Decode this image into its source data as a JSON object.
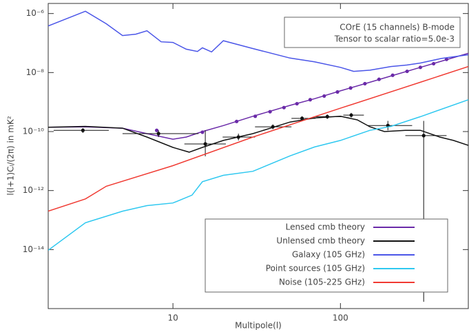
{
  "chart_data": {
    "type": "line",
    "x_label": "Multipole(l)",
    "y_label": "l(l+1)Cₗ/(2π) in mK²",
    "annotations": [
      "COrE (15 channels)  B-mode",
      "Tensor to scalar ratio=5.0e-3"
    ],
    "log_x": true,
    "log_y": true,
    "grid": false,
    "legend": "lower right",
    "xlim": [
      1.8,
      580
    ],
    "xticks": [
      10,
      100
    ],
    "ylim": [
      1e-16,
      2.2e-06
    ],
    "yticks": [
      {
        "value": 1e-06,
        "label": "10⁻⁶"
      },
      {
        "value": 1e-08,
        "label": "10⁻⁸"
      },
      {
        "value": 1e-10,
        "label": "10⁻¹⁰"
      },
      {
        "value": 1e-12,
        "label": "10⁻¹²"
      },
      {
        "value": 1e-14,
        "label": "10⁻¹⁴"
      }
    ],
    "series": [
      {
        "name": "Lensed cmb theory",
        "color": "#6a2aa8",
        "x": [
          1.8,
          3,
          5,
          7,
          10,
          12,
          15,
          20,
          30,
          50,
          70,
          100,
          150,
          200,
          300,
          580
        ],
        "values": [
          1.4e-10,
          1.45e-10,
          1.3e-10,
          8.5e-11,
          5.5e-11,
          6.5e-11,
          1e-10,
          1.6e-10,
          3.3e-10,
          7.7e-10,
          1.3e-09,
          2.4e-09,
          4.7e-09,
          7.6e-09,
          1.5e-08,
          4.5e-08
        ],
        "points": {
          "x": [
            8,
            15,
            24,
            31,
            38,
            46,
            55,
            66,
            80,
            96,
            115,
            140,
            170,
            205,
            250,
            300,
            360,
            430
          ],
          "values": [
            1.1e-10,
            9.5e-11,
            2.2e-10,
            3.3e-10,
            4.7e-10,
            6.5e-10,
            8.8e-10,
            1.2e-09,
            1.6e-09,
            2.2e-09,
            3e-09,
            4.2e-09,
            5.9e-09,
            8.1e-09,
            1.1e-08,
            1.5e-08,
            2e-08,
            2.8e-08
          ]
        }
      },
      {
        "name": "Unlensed cmb theory",
        "color": "#111111",
        "x": [
          1.8,
          3,
          5,
          7,
          10,
          12.5,
          15,
          20,
          30,
          50,
          70,
          100,
          126,
          150,
          183,
          244,
          300,
          392,
          473,
          580
        ],
        "values": [
          1.4e-10,
          1.5e-10,
          1.3e-10,
          6.5e-11,
          2.9e-11,
          2e-11,
          2.9e-11,
          5e-11,
          8.5e-11,
          2.1e-10,
          2.9e-10,
          3.3e-10,
          2.5e-10,
          1.45e-10,
          1e-10,
          1.1e-10,
          1.1e-10,
          6.5e-11,
          5e-11,
          3.4e-11
        ],
        "points": {
          "x": [
            2.9,
            8.2,
            15.6,
            24.6,
            39.5,
            59,
            83.5,
            116,
            192,
            314
          ],
          "values": [
            1.1e-10,
            8.5e-11,
            3.8e-11,
            6.5e-11,
            1.45e-10,
            2.8e-10,
            3.2e-10,
            3.6e-10,
            1.6e-10,
            7.3e-11
          ],
          "x_low": [
            1.94,
            5,
            11.7,
            19.8,
            30.9,
            51,
            71,
            104,
            145,
            244
          ],
          "x_high": [
            4.14,
            14.2,
            20.7,
            30.9,
            51,
            71,
            104,
            138,
            268,
            430
          ],
          "y_low": [
            9e-11,
            6.5e-11,
            1.45e-11,
            5e-11,
            1.2e-10,
            2.4e-10,
            2.7e-10,
            3e-10,
            1.1e-10,
            1.7e-16
          ],
          "y_high": [
            1.3e-10,
            1.1e-10,
            1.1e-10,
            8.5e-11,
            1.75e-10,
            3.3e-10,
            3.8e-10,
            4.3e-10,
            2.3e-10,
            2.3e-10
          ]
        }
      },
      {
        "name": "Galaxy (105 GHz)",
        "color": "#4a55e8",
        "x": [
          1.8,
          3,
          4,
          5,
          6,
          7,
          8.5,
          10,
          12,
          14,
          15,
          17,
          20,
          30,
          50,
          70,
          100,
          120,
          150,
          200,
          250,
          300,
          400,
          580
        ],
        "values": [
          3.8e-07,
          1.2e-06,
          4.5e-07,
          1.8e-07,
          2e-07,
          2.6e-07,
          1.1e-07,
          1.05e-07,
          6.2e-08,
          5.2e-08,
          6.9e-08,
          5e-08,
          1.2e-07,
          6.5e-08,
          3.1e-08,
          2.3e-08,
          1.5e-08,
          1.1e-08,
          1.2e-08,
          1.6e-08,
          1.8e-08,
          2.1e-08,
          3e-08,
          4e-08
        ]
      },
      {
        "name": "Point sources (105 GHz)",
        "color": "#2ec8f0",
        "x": [
          1.8,
          3,
          5,
          7,
          10,
          13,
          15,
          20,
          30,
          50,
          70,
          100,
          150,
          200,
          300,
          580
        ],
        "values": [
          9.5e-15,
          8.1e-14,
          2e-13,
          3.1e-13,
          3.8e-13,
          7e-13,
          2e-12,
          3.3e-12,
          4.5e-12,
          1.5e-11,
          3e-11,
          5e-11,
          1.1e-10,
          1.5e-10,
          3.2e-10,
          1.2e-09
        ]
      },
      {
        "name": "Noise (105-225 GHz)",
        "color": "#f03a32",
        "x": [
          1.8,
          3,
          4,
          10,
          30,
          100,
          300,
          580
        ],
        "values": [
          2e-13,
          5.2e-13,
          1.4e-12,
          7e-12,
          6.5e-11,
          6.2e-10,
          4.7e-09,
          1.6e-08
        ]
      }
    ]
  }
}
